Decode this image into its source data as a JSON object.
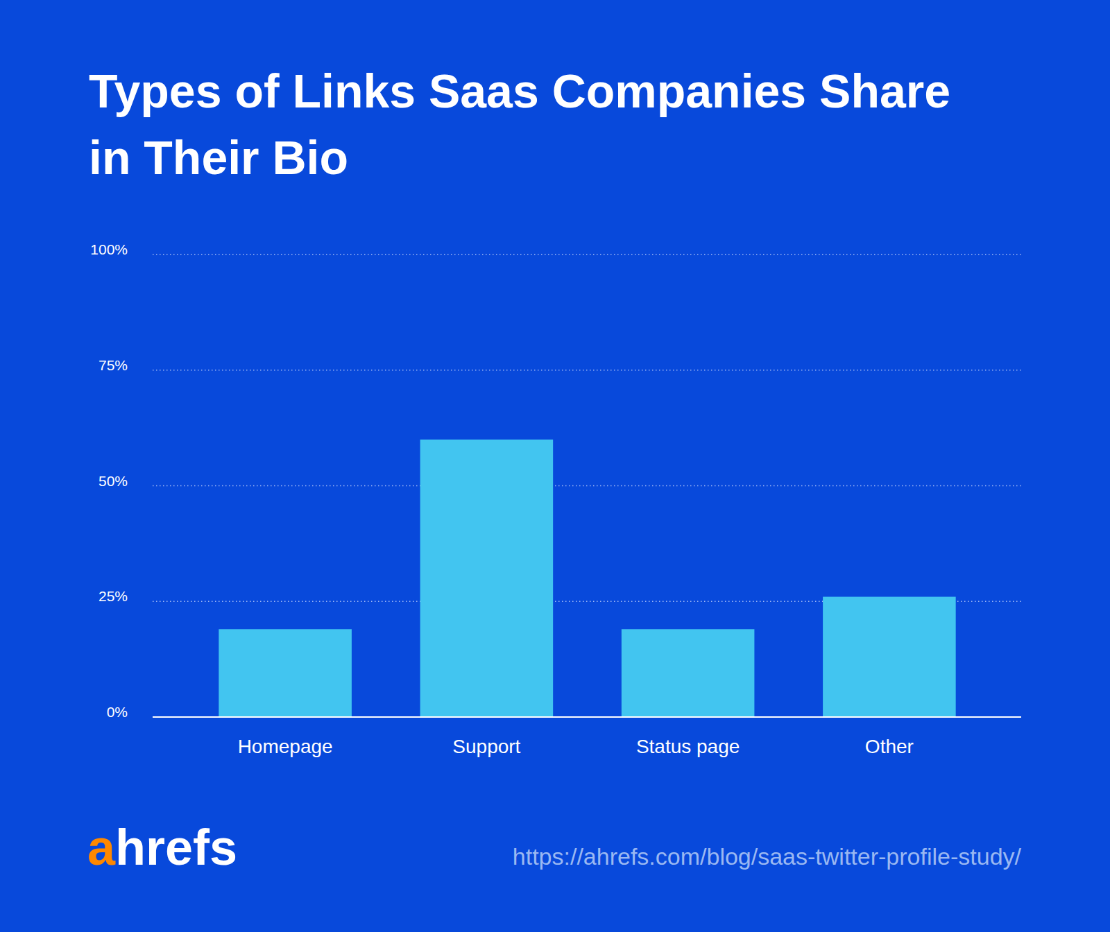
{
  "chart_data": {
    "type": "bar",
    "title": "Types of Links Saas Companies Share in Their Bio",
    "categories": [
      "Homepage",
      "Support",
      "Status page",
      "Other"
    ],
    "values": [
      19,
      60,
      19,
      26
    ],
    "color": "#42c5f0",
    "ylim": [
      0,
      100
    ],
    "yticks": [
      {
        "value": 0,
        "label": "0%"
      },
      {
        "value": 25,
        "label": "25%"
      },
      {
        "value": 50,
        "label": "50%"
      },
      {
        "value": 75,
        "label": "75%"
      },
      {
        "value": 100,
        "label": "100%"
      }
    ],
    "grid": true,
    "logo": "ahrefs",
    "source": "https://ahrefs.com/blog/saas-twitter-profile-study/"
  }
}
